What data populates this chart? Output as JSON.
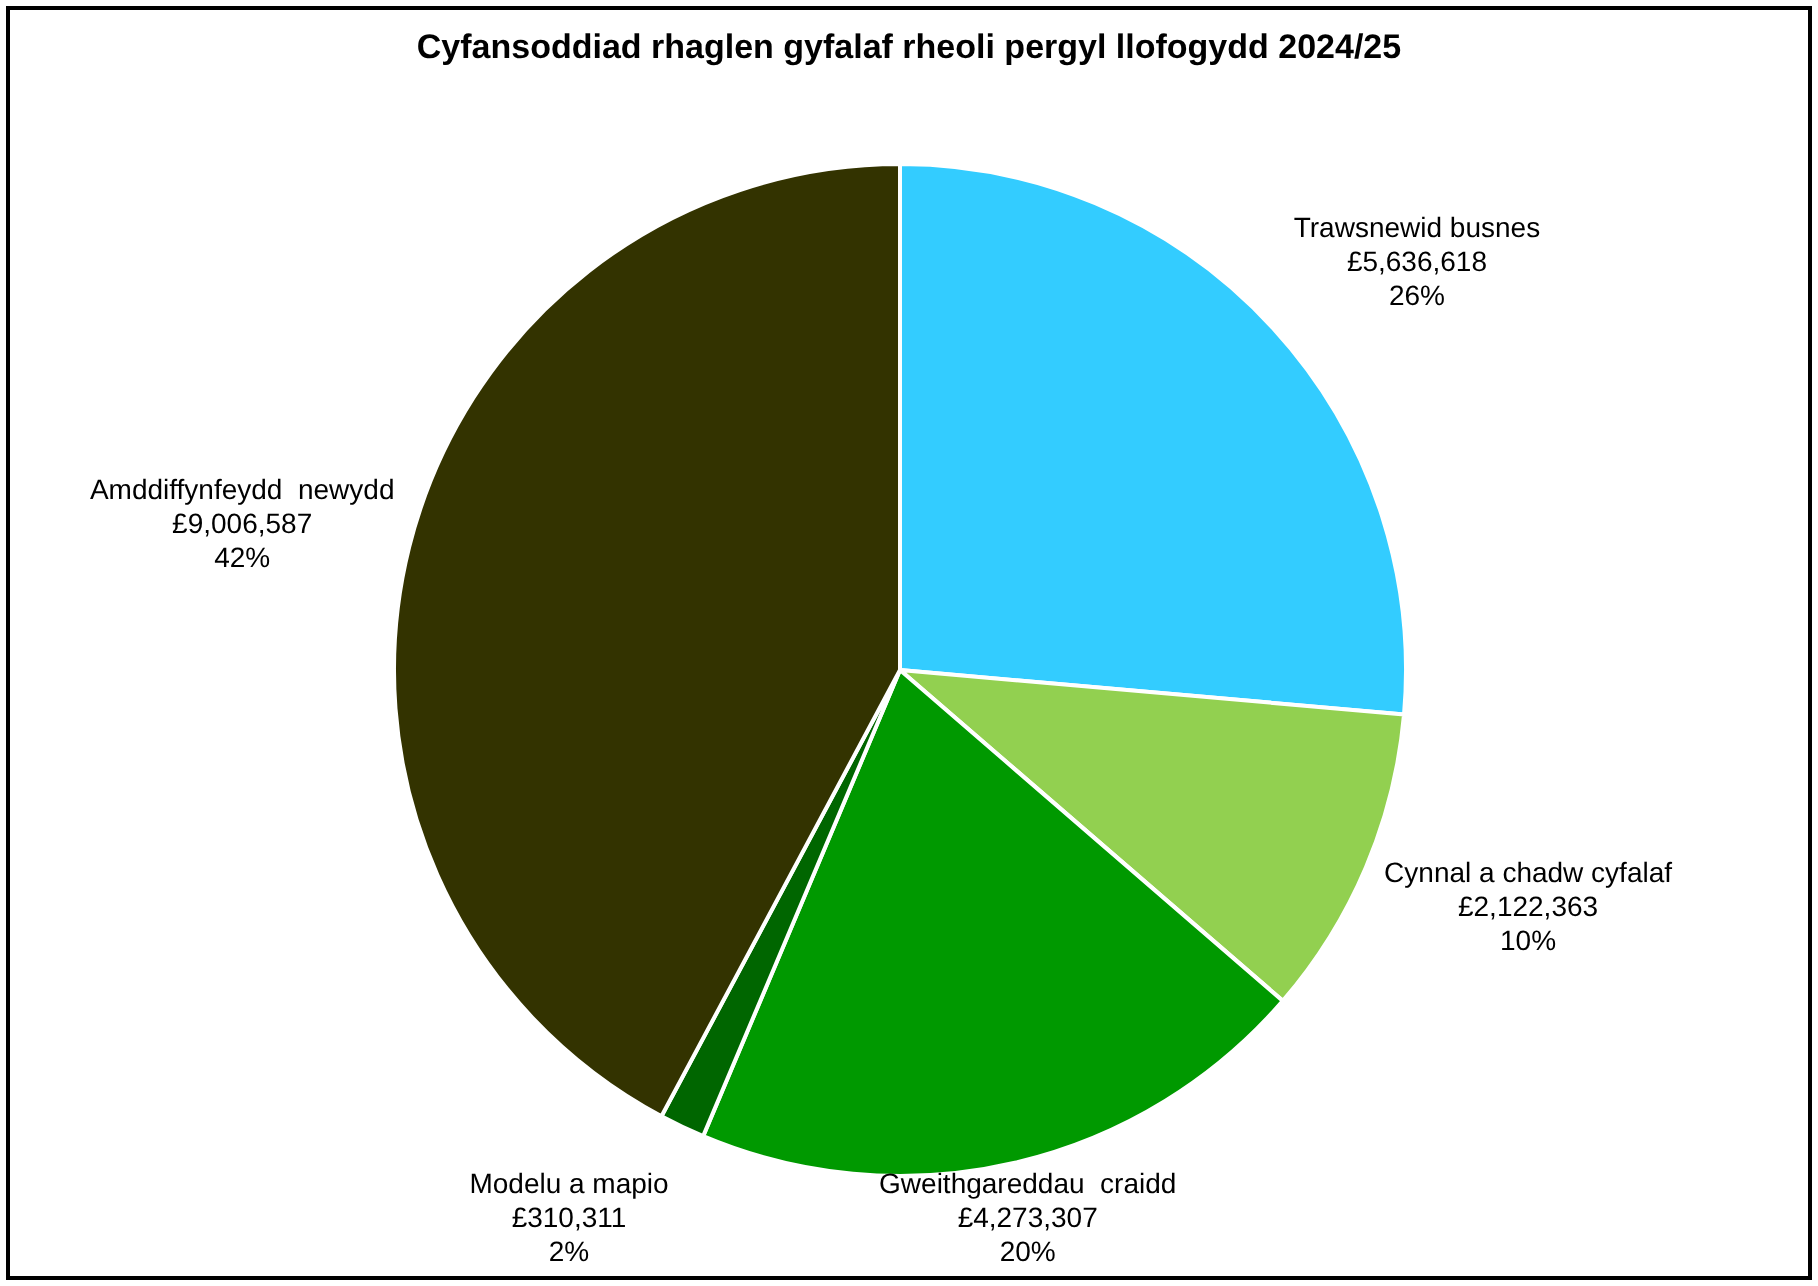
{
  "chart_data": {
    "type": "pie",
    "title": "Cyfansoddiad rhaglen gyfalaf rheoli pergyl llofogydd 2024/25",
    "categories": [
      "Trawsnewid busnes",
      "Cynnal a chadw cyfalaf",
      "Gweithgareddau  craidd",
      "Modelu a mapio",
      "Amddiffynfeydd  newydd"
    ],
    "values": [
      5636618,
      2122363,
      4273307,
      310311,
      9006587
    ],
    "colors": [
      "#33ccff",
      "#92d050",
      "#009900",
      "#006600",
      "#333300"
    ],
    "value_labels": [
      "£5,636,618\n26%",
      "£2,122,363\n10%",
      "£4,273,307\n20%",
      "£310,311\n2%",
      "£9,006,587\n42%"
    ]
  }
}
